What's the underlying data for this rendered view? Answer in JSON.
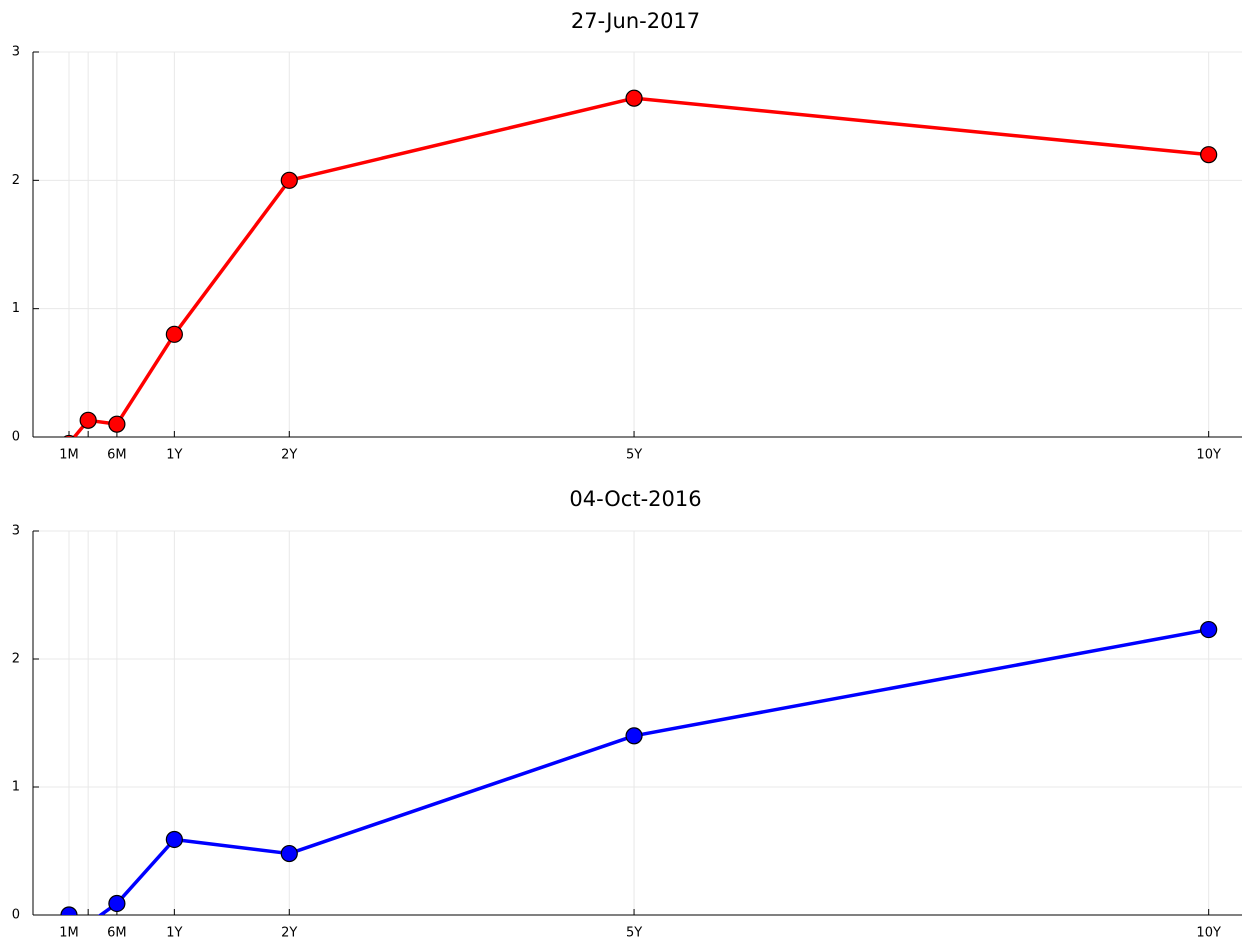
{
  "chart_data": [
    {
      "type": "line",
      "title": "27-Jun-2017",
      "x": [
        0.0833,
        0.25,
        0.5,
        1,
        2,
        5,
        10
      ],
      "values": [
        -0.05,
        0.13,
        0.1,
        0.8,
        2.0,
        2.64,
        2.2
      ],
      "color": "#ff0000",
      "xlim": [
        -0.23,
        10.29
      ],
      "ylim": [
        0,
        3
      ],
      "xticks": [
        {
          "value": 0.0833,
          "label": "1M"
        },
        {
          "value": 0.25,
          "label": null
        },
        {
          "value": 0.5,
          "label": "6M"
        },
        {
          "value": 1,
          "label": "1Y"
        },
        {
          "value": 2,
          "label": "2Y"
        },
        {
          "value": 5,
          "label": "5Y"
        },
        {
          "value": 10,
          "label": "10Y"
        }
      ],
      "yticks": [
        0,
        1,
        2,
        3
      ],
      "grid": true
    },
    {
      "type": "line",
      "title": "04-Oct-2016",
      "x": [
        0.0833,
        0.25,
        0.5,
        1,
        2,
        5,
        10
      ],
      "values": [
        0,
        -0.07,
        0.09,
        0.59,
        0.48,
        1.4,
        2.23
      ],
      "color": "#0000ff",
      "xlim": [
        -0.23,
        10.29
      ],
      "ylim": [
        0,
        3
      ],
      "xticks": [
        {
          "value": 0.0833,
          "label": "1M"
        },
        {
          "value": 0.25,
          "label": null
        },
        {
          "value": 0.5,
          "label": "6M"
        },
        {
          "value": 1,
          "label": "1Y"
        },
        {
          "value": 2,
          "label": "2Y"
        },
        {
          "value": 5,
          "label": "5Y"
        },
        {
          "value": 10,
          "label": "10Y"
        }
      ],
      "yticks": [
        0,
        1,
        2,
        3
      ],
      "grid": true
    }
  ]
}
